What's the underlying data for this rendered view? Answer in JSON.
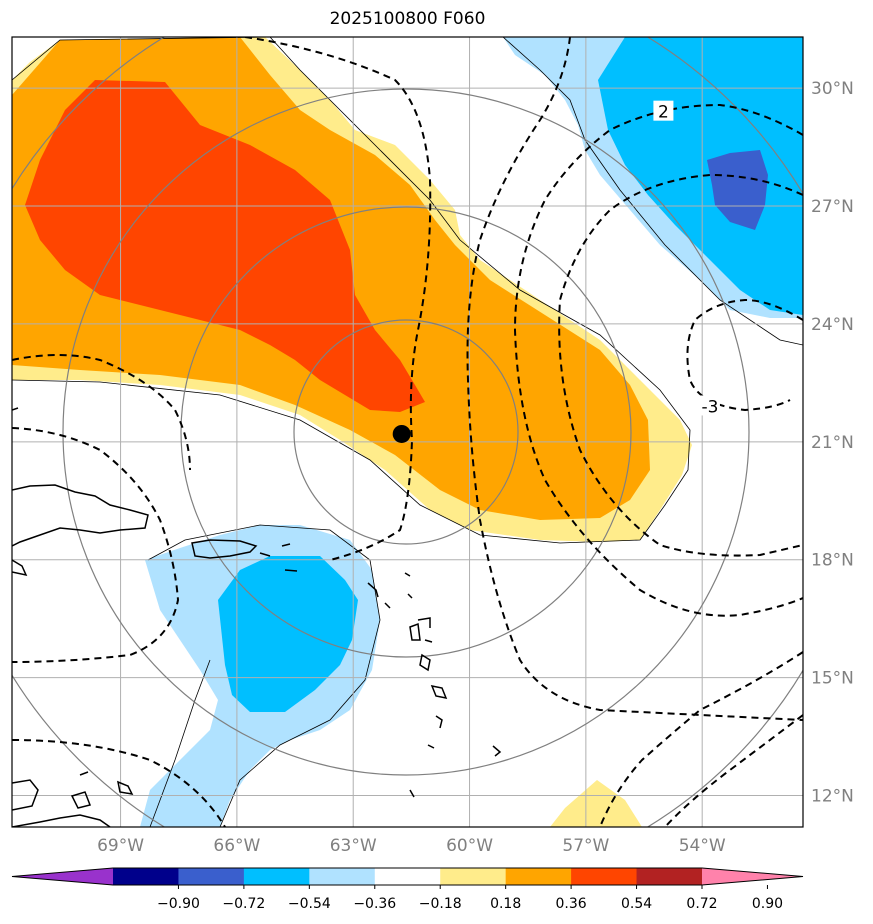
{
  "title": "2025100800 F060",
  "map": {
    "lon_range": [
      -71.8,
      -51.4
    ],
    "lat_range": [
      11.2,
      31.3
    ],
    "grid": true,
    "lon_ticks": [
      {
        "lon": -69,
        "label": "69°W"
      },
      {
        "lon": -66,
        "label": "66°W"
      },
      {
        "lon": -63,
        "label": "63°W"
      },
      {
        "lon": -60,
        "label": "60°W"
      },
      {
        "lon": -57,
        "label": "57°W"
      },
      {
        "lon": -54,
        "label": "54°W"
      }
    ],
    "lat_ticks": [
      {
        "lat": 12,
        "label": "12°N"
      },
      {
        "lat": 15,
        "label": "15°N"
      },
      {
        "lat": 18,
        "label": "18°N"
      },
      {
        "lat": 21,
        "label": "21°N"
      },
      {
        "lat": 24,
        "label": "24°N"
      },
      {
        "lat": 27,
        "label": "27°N"
      },
      {
        "lat": 30,
        "label": "30°N"
      }
    ],
    "storm_center": {
      "lon": -61.75,
      "lat": 21.2
    },
    "contour_labels": [
      {
        "text": "2",
        "lon": -55.0,
        "lat": 29.4
      },
      {
        "text": "-3",
        "lon": -53.8,
        "lat": 21.9
      }
    ]
  },
  "colorbar": {
    "colors": [
      "#9932cc",
      "#00008b",
      "#3a5fcd",
      "#00bfff",
      "#b0e2ff",
      "#ffffff",
      "#ffec8b",
      "#ffa500",
      "#ff4500",
      "#b22222",
      "#ff82ab"
    ],
    "tick_labels": [
      "−0.90",
      "−0.72",
      "−0.54",
      "−0.36",
      "−0.18",
      "0.18",
      "0.36",
      "0.54",
      "0.72",
      "0.90"
    ]
  },
  "shading_colors": {
    "pos_light": "#ffec8b",
    "pos_mid": "#ffa500",
    "pos_strong": "#ff4500",
    "neg_light": "#b0e2ff",
    "neg_mid": "#00bfff",
    "neg_strong": "#3a5fcd"
  }
}
